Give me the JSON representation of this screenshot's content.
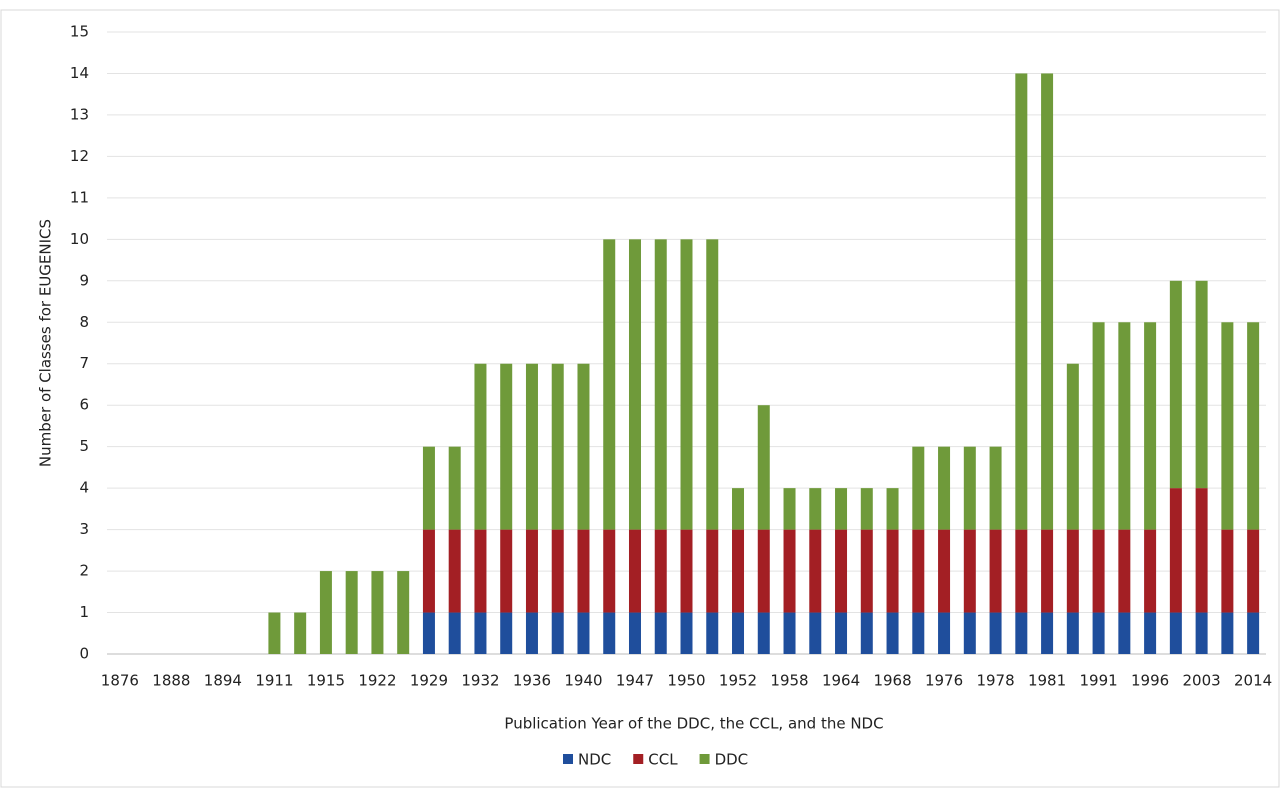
{
  "chart_data": {
    "type": "stacked_bar",
    "x_label": "Publication Year of the DDC, the CCL, and the NDC",
    "y_label": "Number of Classes for EUGENICS",
    "categories": [
      "1876",
      null,
      "1888",
      null,
      "1894",
      null,
      "1911",
      null,
      "1915",
      null,
      "1922",
      null,
      "1929",
      null,
      "1932",
      null,
      "1936",
      null,
      "1940",
      null,
      "1947",
      null,
      "1950",
      null,
      "1952",
      null,
      "1958",
      null,
      "1964",
      null,
      "1968",
      null,
      "1976",
      null,
      "1978",
      null,
      "1981",
      null,
      "1991",
      null,
      "1996",
      null,
      "2003",
      null,
      "2014"
    ],
    "series": [
      {
        "name": "NDC",
        "color": "#1f4e9c",
        "values": [
          0,
          0,
          0,
          0,
          0,
          0,
          0,
          0,
          0,
          0,
          0,
          0,
          1,
          1,
          1,
          1,
          1,
          1,
          1,
          1,
          1,
          1,
          1,
          1,
          1,
          1,
          1,
          1,
          1,
          1,
          1,
          1,
          1,
          1,
          1,
          1,
          1,
          1,
          1,
          1,
          1,
          1,
          1,
          1,
          1
        ]
      },
      {
        "name": "CCL",
        "color": "#a31f24",
        "values": [
          0,
          0,
          0,
          0,
          0,
          0,
          0,
          0,
          0,
          0,
          0,
          0,
          2,
          2,
          2,
          2,
          2,
          2,
          2,
          2,
          2,
          2,
          2,
          2,
          2,
          2,
          2,
          2,
          2,
          2,
          2,
          2,
          2,
          2,
          2,
          2,
          2,
          2,
          2,
          2,
          2,
          3,
          3,
          2,
          2
        ]
      },
      {
        "name": "DDC",
        "color": "#6f9a3a",
        "values": [
          0,
          0,
          0,
          0,
          0,
          0,
          1,
          1,
          2,
          2,
          2,
          2,
          2,
          2,
          4,
          4,
          4,
          4,
          4,
          7,
          7,
          7,
          7,
          7,
          1,
          3,
          1,
          1,
          1,
          1,
          1,
          2,
          2,
          2,
          2,
          11,
          11,
          4,
          5,
          5,
          5,
          5,
          5,
          5,
          5
        ]
      }
    ],
    "ylim": [
      0,
      15
    ],
    "yticks": [
      0,
      1,
      2,
      3,
      4,
      5,
      6,
      7,
      8,
      9,
      10,
      11,
      12,
      13,
      14,
      15
    ],
    "grid": true,
    "legend": "bottom"
  }
}
